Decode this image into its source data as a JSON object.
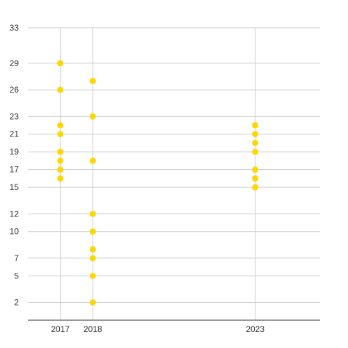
{
  "chart_data": {
    "type": "scatter",
    "title": "",
    "xlabel": "",
    "ylabel": "",
    "xlim": [
      2016,
      2025
    ],
    "ylim": [
      0,
      33
    ],
    "x_ticks": [
      2017,
      2018,
      2023
    ],
    "y_ticks": [
      2,
      5,
      7,
      10,
      12,
      15,
      17,
      19,
      21,
      23,
      26,
      29,
      33
    ],
    "grid": true,
    "legend": "none",
    "series": [
      {
        "color": "#FFD600",
        "points": [
          {
            "x": 2017,
            "y": 29
          },
          {
            "x": 2017,
            "y": 26
          },
          {
            "x": 2017,
            "y": 22
          },
          {
            "x": 2017,
            "y": 21
          },
          {
            "x": 2017,
            "y": 19
          },
          {
            "x": 2017,
            "y": 18
          },
          {
            "x": 2017,
            "y": 17
          },
          {
            "x": 2017,
            "y": 16
          },
          {
            "x": 2018,
            "y": 27
          },
          {
            "x": 2018,
            "y": 23
          },
          {
            "x": 2018,
            "y": 18
          },
          {
            "x": 2018,
            "y": 12
          },
          {
            "x": 2018,
            "y": 10
          },
          {
            "x": 2018,
            "y": 8
          },
          {
            "x": 2018,
            "y": 7
          },
          {
            "x": 2018,
            "y": 5
          },
          {
            "x": 2018,
            "y": 2
          },
          {
            "x": 2023,
            "y": 22
          },
          {
            "x": 2023,
            "y": 21
          },
          {
            "x": 2023,
            "y": 20
          },
          {
            "x": 2023,
            "y": 19
          },
          {
            "x": 2023,
            "y": 17
          },
          {
            "x": 2023,
            "y": 16
          },
          {
            "x": 2023,
            "y": 15
          }
        ]
      }
    ]
  }
}
